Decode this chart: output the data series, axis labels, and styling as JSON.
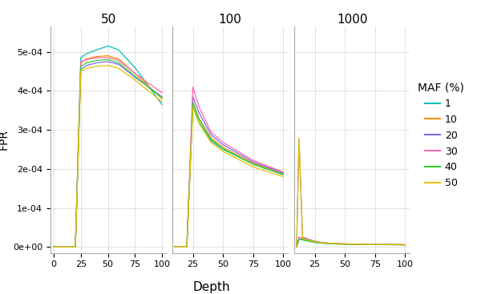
{
  "panel_labels": [
    "50",
    "100",
    "1000"
  ],
  "maf_labels": [
    "1",
    "10",
    "20",
    "30",
    "40",
    "50"
  ],
  "maf_colors": {
    "1": "#00BFB2",
    "10": "#FF8C00",
    "20": "#7B68EE",
    "30": "#FF69B4",
    "40": "#32CD32",
    "50": "#E6C200"
  },
  "ylabel": "FPR",
  "xlabel": "Depth",
  "yticks": [
    0.0,
    0.0001,
    0.0002,
    0.0003,
    0.0004,
    0.0005
  ],
  "ytick_labels": [
    "0e+00",
    "1e-04",
    "2e-04",
    "3e-04",
    "4e-04",
    "5e-04"
  ],
  "ylim": [
    -1.5e-05,
    0.000565
  ],
  "background_color": "#ffffff",
  "grid_color": "#dddddd",
  "panel1": {
    "x": [
      0,
      20,
      25,
      30,
      40,
      50,
      60,
      75,
      100
    ],
    "data": {
      "1": [
        0.0,
        0.0,
        0.000485,
        0.000495,
        0.000505,
        0.000515,
        0.000505,
        0.00046,
        0.000365
      ],
      "10": [
        0.0,
        0.0,
        0.00047,
        0.000482,
        0.000488,
        0.00049,
        0.000482,
        0.000445,
        0.00038
      ],
      "20": [
        0.0,
        0.0,
        0.000455,
        0.000465,
        0.000472,
        0.000475,
        0.000468,
        0.000435,
        0.000385
      ],
      "30": [
        0.0,
        0.0,
        0.000475,
        0.00048,
        0.000485,
        0.000485,
        0.000478,
        0.000445,
        0.000395
      ],
      "40": [
        0.0,
        0.0,
        0.000462,
        0.000472,
        0.000478,
        0.00048,
        0.000472,
        0.000438,
        0.000382
      ],
      "50": [
        0.0,
        0.0,
        0.00045,
        0.000458,
        0.000463,
        0.000465,
        0.000458,
        0.000428,
        0.000372
      ]
    }
  },
  "panel2": {
    "x": [
      10,
      20,
      25,
      30,
      40,
      50,
      75,
      100
    ],
    "data": {
      "1": [
        0.0,
        0.0,
        0.000362,
        0.00032,
        0.000272,
        0.00025,
        0.000212,
        0.000185
      ],
      "10": [
        0.0,
        0.0,
        0.000372,
        0.00033,
        0.00028,
        0.000255,
        0.000215,
        0.000188
      ],
      "20": [
        0.0,
        0.0,
        0.000385,
        0.000345,
        0.000288,
        0.000262,
        0.000218,
        0.00019
      ],
      "30": [
        0.0,
        0.0,
        0.00041,
        0.00036,
        0.000295,
        0.000268,
        0.000222,
        0.000192
      ],
      "40": [
        0.0,
        0.0,
        0.00037,
        0.000328,
        0.000276,
        0.000252,
        0.000212,
        0.000186
      ],
      "50": [
        0.0,
        0.0,
        0.000358,
        0.000318,
        0.000268,
        0.000245,
        0.000205,
        0.00018
      ]
    }
  },
  "panel3": {
    "x": [
      10,
      12,
      15,
      20,
      25,
      30,
      40,
      50,
      75,
      100
    ],
    "data": {
      "1": [
        0.0,
        2e-05,
        2e-05,
        1.5e-05,
        1.2e-05,
        1e-05,
        8e-06,
        7e-06,
        6e-06,
        5.5e-06
      ],
      "10": [
        0.0,
        2.5e-05,
        2.2e-05,
        1.8e-05,
        1.4e-05,
        1.1e-05,
        9e-06,
        7.8e-06,
        6.5e-06,
        5.8e-06
      ],
      "20": [
        0.0,
        0.000275,
        2.5e-05,
        2e-05,
        1.5e-05,
        1.2e-05,
        9e-06,
        7.8e-06,
        6.5e-06,
        5.8e-06
      ],
      "30": [
        0.0,
        2.5e-05,
        2.2e-05,
        1.8e-05,
        1.4e-05,
        1.1e-05,
        9e-06,
        7.8e-06,
        6.5e-06,
        5.8e-06
      ],
      "40": [
        0.0,
        2e-05,
        1.8e-05,
        1.5e-05,
        1.2e-05,
        1e-05,
        8.2e-06,
        7.2e-06,
        6.2e-06,
        5.6e-06
      ],
      "50": [
        0.0,
        0.00028,
        2.2e-05,
        1.8e-05,
        1.4e-05,
        1.1e-05,
        9e-06,
        7.8e-06,
        6.5e-06,
        5.8e-06
      ]
    }
  }
}
